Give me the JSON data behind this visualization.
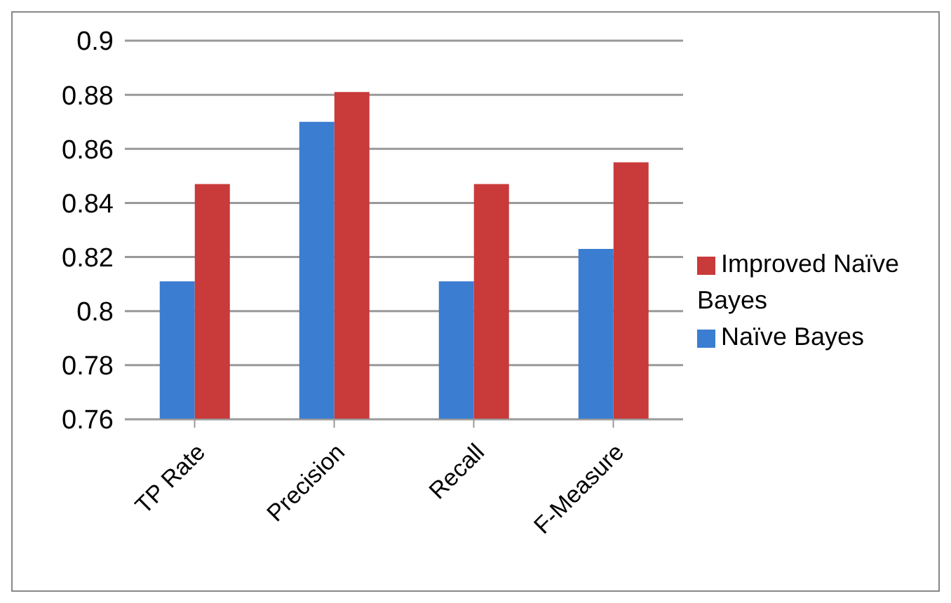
{
  "chart_data": {
    "type": "bar",
    "categories": [
      "TP Rate",
      "Precision",
      "Recall",
      "F-Measure"
    ],
    "series": [
      {
        "name": "Naïve Bayes",
        "color": "#3b7dd1",
        "values": [
          0.811,
          0.87,
          0.811,
          0.823
        ]
      },
      {
        "name": "Improved Naïve Bayes",
        "color": "#c93a3a",
        "values": [
          0.847,
          0.881,
          0.847,
          0.855
        ]
      }
    ],
    "ylim": [
      0.76,
      0.9
    ],
    "yticks": [
      0.76,
      0.78,
      0.8,
      0.82,
      0.84,
      0.86,
      0.88,
      0.9
    ],
    "grid": "y",
    "legend": "right"
  }
}
